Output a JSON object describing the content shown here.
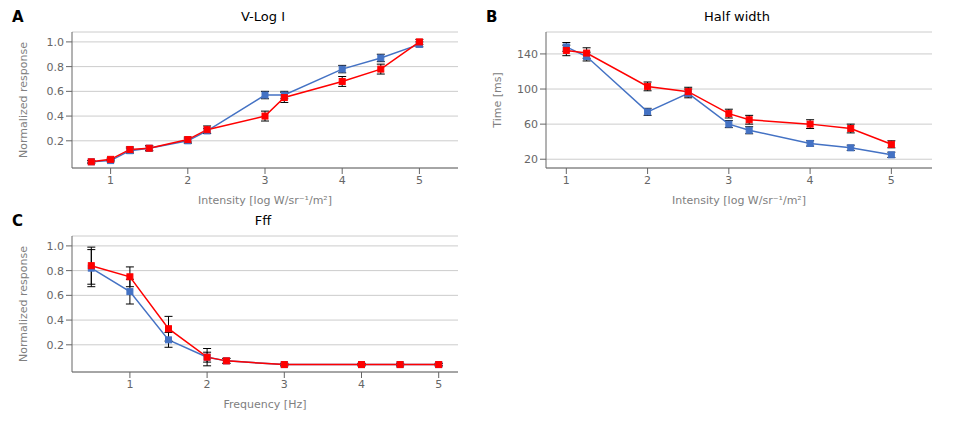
{
  "chart_data": [
    {
      "type": "line",
      "panel_label": "A",
      "title": "V-Log I",
      "x_label": "Intensity [log W/sr⁻¹/m²]",
      "y_label": "Normalized response",
      "series": [
        {
          "color": "#4472C4",
          "marker": "square",
          "x": [
            0.75,
            1.0,
            1.25,
            1.5,
            2.0,
            2.25,
            3.0,
            3.25,
            4.0,
            4.5,
            5.0
          ],
          "values": [
            0.03,
            0.04,
            0.12,
            0.14,
            0.2,
            0.28,
            0.57,
            0.57,
            0.78,
            0.87,
            0.98
          ],
          "errors": [
            0.01,
            0.01,
            0.02,
            0.02,
            0.02,
            0.02,
            0.03,
            0.03,
            0.03,
            0.03,
            0.02
          ]
        },
        {
          "color": "#FF0000",
          "marker": "square",
          "x": [
            0.75,
            1.0,
            1.25,
            1.5,
            2.0,
            2.25,
            3.0,
            3.25,
            4.0,
            4.5,
            5.0
          ],
          "values": [
            0.03,
            0.05,
            0.13,
            0.14,
            0.21,
            0.29,
            0.4,
            0.55,
            0.68,
            0.78,
            1.0
          ],
          "errors": [
            0.01,
            0.01,
            0.02,
            0.02,
            0.02,
            0.03,
            0.04,
            0.04,
            0.04,
            0.04,
            0.02
          ]
        }
      ],
      "xlim": [
        0.5,
        5.5
      ],
      "xticks": [
        1,
        2,
        3,
        4,
        5
      ],
      "ylim": [
        -0.02,
        1.08
      ],
      "yticks": [
        0.2,
        0.4,
        0.6,
        0.8,
        {
          "value": 1,
          "label": "1.0"
        }
      ],
      "grid": "y"
    },
    {
      "type": "line",
      "panel_label": "B",
      "title": "Half width",
      "x_label": "Intensity [log W/sr⁻¹/m²]",
      "y_label": "Time [ms]",
      "series": [
        {
          "color": "#4472C4",
          "marker": "square",
          "x": [
            1.0,
            1.25,
            2.0,
            2.5,
            3.0,
            3.25,
            4.0,
            4.5,
            5.0
          ],
          "values": [
            148,
            137,
            74,
            95,
            60,
            53,
            38,
            33,
            25
          ],
          "errors": [
            5,
            5,
            4,
            5,
            4,
            4,
            3,
            3,
            3
          ]
        },
        {
          "color": "#FF0000",
          "marker": "square",
          "x": [
            1.0,
            1.25,
            2.0,
            2.5,
            3.0,
            3.25,
            4.0,
            4.5,
            5.0
          ],
          "values": [
            144,
            141,
            103,
            97,
            72,
            65,
            60,
            55,
            37
          ],
          "errors": [
            6,
            6,
            5,
            5,
            5,
            5,
            5,
            5,
            4
          ]
        }
      ],
      "xlim": [
        0.75,
        5.5
      ],
      "xticks": [
        1,
        2,
        3,
        4,
        5
      ],
      "ylim": [
        10,
        165
      ],
      "yticks": [
        20,
        60,
        100,
        140
      ],
      "grid": "y"
    },
    {
      "type": "line",
      "panel_label": "C",
      "title": "Fff",
      "x_label": "Frequency [Hz]",
      "y_label": "Normalized response",
      "series": [
        {
          "color": "#4472C4",
          "marker": "square",
          "x": [
            0.5,
            1.0,
            1.5,
            2.0,
            2.25,
            3.0,
            4.0,
            4.5,
            5.0
          ],
          "values": [
            0.82,
            0.63,
            0.24,
            0.1,
            0.07,
            0.04,
            0.04,
            0.04,
            0.04
          ],
          "errors": [
            0.15,
            0.1,
            0.06,
            0.04,
            0.02,
            0.01,
            0.01,
            0.01,
            0.01
          ]
        },
        {
          "color": "#FF0000",
          "marker": "square",
          "x": [
            0.5,
            1.0,
            1.5,
            2.0,
            2.25,
            3.0,
            4.0,
            4.5,
            5.0
          ],
          "values": [
            0.84,
            0.75,
            0.33,
            0.1,
            0.07,
            0.04,
            0.04,
            0.04,
            0.04
          ],
          "errors": [
            0.15,
            0.08,
            0.1,
            0.07,
            0.02,
            0.01,
            0.01,
            0.01,
            0.01
          ]
        }
      ],
      "xlim": [
        0.25,
        5.25
      ],
      "xticks": [
        1,
        2,
        3,
        4,
        5
      ],
      "ylim": [
        -0.02,
        1.08
      ],
      "yticks": [
        0.2,
        0.4,
        0.6,
        0.8,
        {
          "value": 1,
          "label": "1.0"
        }
      ],
      "grid": "y"
    }
  ]
}
